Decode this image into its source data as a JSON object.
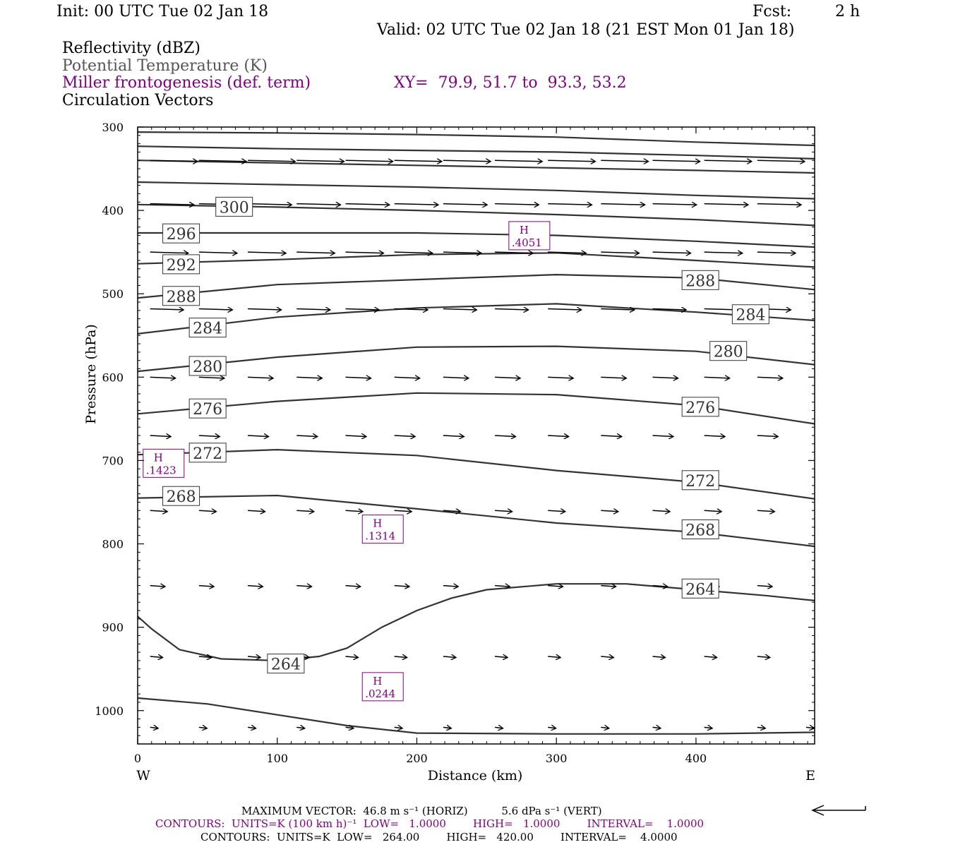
{
  "header": {
    "init": "Init: 00 UTC Tue 02 Jan 18",
    "fcst_label": "Fcst:",
    "fcst_value": "2 h",
    "valid": "Valid: 02 UTC Tue 02 Jan 18 (21 EST Mon 01 Jan 18)"
  },
  "legend": {
    "line1": "Reflectivity (dBZ)",
    "line2": "Potential Temperature (K)",
    "line3": "Miller frontogenesis (def. term)",
    "line4": "Circulation Vectors",
    "xy": "XY=  79.9, 51.7 to  93.3, 53.2"
  },
  "colors": {
    "purple": "#800080",
    "gray": "#555555",
    "line": "#333333"
  },
  "footer": {
    "max_vector": "MAXIMUM VECTOR:  46.8 m s⁻¹ (HORIZ)          5.6 dPa s⁻¹ (VERT)",
    "contours_purple": "CONTOURS:  UNITS=K (100 km h)⁻¹  LOW=   1.0000        HIGH=   1.0000        INTERVAL=    1.0000",
    "contours_black": "CONTOURS:  UNITS=K  LOW=   264.00        HIGH=   420.00        INTERVAL=    4.0000"
  },
  "chart_data": {
    "type": "line",
    "xlabel": "Distance (km)",
    "ylabel": "Pressure (hPa)",
    "xlim": [
      0,
      485
    ],
    "ylim": [
      300,
      1040
    ],
    "y_scale": "linear, inverted (pressure increases downward)",
    "x_ticks": [
      "0",
      "100",
      "200",
      "300",
      "400"
    ],
    "x_tick_values": [
      0,
      100,
      200,
      300,
      400
    ],
    "y_ticks": [
      "300",
      "400",
      "500",
      "600",
      "700",
      "800",
      "900",
      "1000"
    ],
    "y_tick_values": [
      300,
      400,
      500,
      600,
      700,
      800,
      900,
      1000
    ],
    "west_label": "W",
    "east_label": "E",
    "theta_contours": [
      {
        "points": [
          [
            0,
            306
          ],
          [
            100,
            307
          ],
          [
            200,
            309
          ],
          [
            300,
            312
          ],
          [
            400,
            318
          ],
          [
            485,
            322
          ]
        ]
      },
      {
        "points": [
          [
            0,
            323
          ],
          [
            100,
            326
          ],
          [
            200,
            328
          ],
          [
            300,
            330
          ],
          [
            400,
            334
          ],
          [
            485,
            338
          ]
        ]
      },
      {
        "points": [
          [
            0,
            340
          ],
          [
            100,
            343
          ],
          [
            200,
            346
          ],
          [
            300,
            349
          ],
          [
            400,
            352
          ],
          [
            485,
            355
          ]
        ]
      },
      {
        "points": [
          [
            0,
            366
          ],
          [
            100,
            369
          ],
          [
            200,
            372
          ],
          [
            300,
            376
          ],
          [
            400,
            382
          ],
          [
            485,
            386
          ]
        ]
      },
      {
        "points": [
          [
            0,
            393
          ],
          [
            100,
            396
          ],
          [
            200,
            400
          ],
          [
            300,
            405
          ],
          [
            400,
            411
          ],
          [
            485,
            418
          ]
        ]
      },
      {
        "points": [
          [
            0,
            427
          ],
          [
            100,
            427
          ],
          [
            200,
            427
          ],
          [
            300,
            430
          ],
          [
            400,
            437
          ],
          [
            485,
            444
          ]
        ]
      },
      {
        "points": [
          [
            0,
            464
          ],
          [
            100,
            459
          ],
          [
            200,
            453
          ],
          [
            300,
            451
          ],
          [
            400,
            460
          ],
          [
            485,
            468
          ]
        ]
      },
      {
        "points": [
          [
            0,
            505
          ],
          [
            100,
            489
          ],
          [
            200,
            483
          ],
          [
            300,
            477
          ],
          [
            400,
            481
          ],
          [
            485,
            495
          ]
        ]
      },
      {
        "points": [
          [
            0,
            548
          ],
          [
            100,
            528
          ],
          [
            200,
            517
          ],
          [
            300,
            512
          ],
          [
            400,
            522
          ],
          [
            485,
            532
          ]
        ]
      },
      {
        "points": [
          [
            0,
            593
          ],
          [
            100,
            576
          ],
          [
            200,
            564
          ],
          [
            300,
            563
          ],
          [
            400,
            569
          ],
          [
            485,
            585
          ]
        ]
      },
      {
        "points": [
          [
            0,
            644
          ],
          [
            100,
            629
          ],
          [
            200,
            619
          ],
          [
            300,
            621
          ],
          [
            400,
            634
          ],
          [
            485,
            656
          ]
        ]
      },
      {
        "points": [
          [
            0,
            693
          ],
          [
            100,
            687
          ],
          [
            200,
            694
          ],
          [
            300,
            712
          ],
          [
            400,
            726
          ],
          [
            485,
            746
          ]
        ]
      },
      {
        "points": [
          [
            0,
            745
          ],
          [
            100,
            742
          ],
          [
            200,
            758
          ],
          [
            300,
            775
          ],
          [
            400,
            786
          ],
          [
            485,
            803
          ]
        ]
      },
      {
        "points": [
          [
            0,
            887
          ],
          [
            10,
            902
          ],
          [
            30,
            927
          ],
          [
            60,
            938
          ],
          [
            100,
            940
          ],
          [
            130,
            935
          ],
          [
            150,
            925
          ],
          [
            175,
            900
          ],
          [
            200,
            880
          ],
          [
            225,
            865
          ],
          [
            250,
            855
          ],
          [
            300,
            848
          ],
          [
            350,
            848
          ],
          [
            400,
            855
          ],
          [
            450,
            862
          ],
          [
            485,
            868
          ]
        ]
      },
      {
        "points": [
          [
            0,
            985
          ],
          [
            50,
            992
          ],
          [
            100,
            1005
          ],
          [
            150,
            1018
          ],
          [
            200,
            1027
          ],
          [
            300,
            1028
          ],
          [
            400,
            1028
          ],
          [
            485,
            1026
          ]
        ]
      }
    ],
    "contour_labels": [
      {
        "text": "300",
        "x": 56,
        "y": 396
      },
      {
        "text": "296",
        "x": 18,
        "y": 428
      },
      {
        "text": "292",
        "x": 18,
        "y": 465
      },
      {
        "text": "288",
        "x": 18,
        "y": 503
      },
      {
        "text": "288",
        "x": 390,
        "y": 484
      },
      {
        "text": "284",
        "x": 37,
        "y": 541
      },
      {
        "text": "284",
        "x": 426,
        "y": 525
      },
      {
        "text": "280",
        "x": 37,
        "y": 587
      },
      {
        "text": "280",
        "x": 410,
        "y": 569
      },
      {
        "text": "276",
        "x": 37,
        "y": 638
      },
      {
        "text": "276",
        "x": 390,
        "y": 636
      },
      {
        "text": "272",
        "x": 37,
        "y": 691
      },
      {
        "text": "272",
        "x": 390,
        "y": 724
      },
      {
        "text": "268",
        "x": 18,
        "y": 743
      },
      {
        "text": "268",
        "x": 390,
        "y": 783
      },
      {
        "text": "264",
        "x": 390,
        "y": 854
      },
      {
        "text": "264",
        "x": 93,
        "y": 944
      }
    ],
    "frontogenesis_maxima": [
      {
        "label": "H",
        "value": ".4051",
        "x": 271,
        "y": 432
      },
      {
        "label": "H",
        "value": ".1423",
        "x": 9,
        "y": 705
      },
      {
        "label": "H",
        "value": ".1314",
        "x": 166,
        "y": 784
      },
      {
        "label": "H",
        "value": ".0244",
        "x": 166,
        "y": 973
      }
    ],
    "vector_levels": [
      {
        "p": 340,
        "len": 0.82
      },
      {
        "p": 392,
        "len": 0.76
      },
      {
        "p": 450,
        "len": 0.66
      },
      {
        "p": 518,
        "len": 0.58
      },
      {
        "p": 600,
        "len": 0.44
      },
      {
        "p": 670,
        "len": 0.36
      },
      {
        "p": 760,
        "len": 0.3
      },
      {
        "p": 850,
        "len": 0.26
      },
      {
        "p": 935,
        "len": 0.22
      },
      {
        "p": 1020,
        "len": 0.14
      }
    ],
    "vector_x": [
      15,
      50,
      85,
      120,
      155,
      190,
      225,
      262,
      300,
      338,
      375,
      412,
      450,
      485
    ],
    "max_vector_arrow": true
  }
}
